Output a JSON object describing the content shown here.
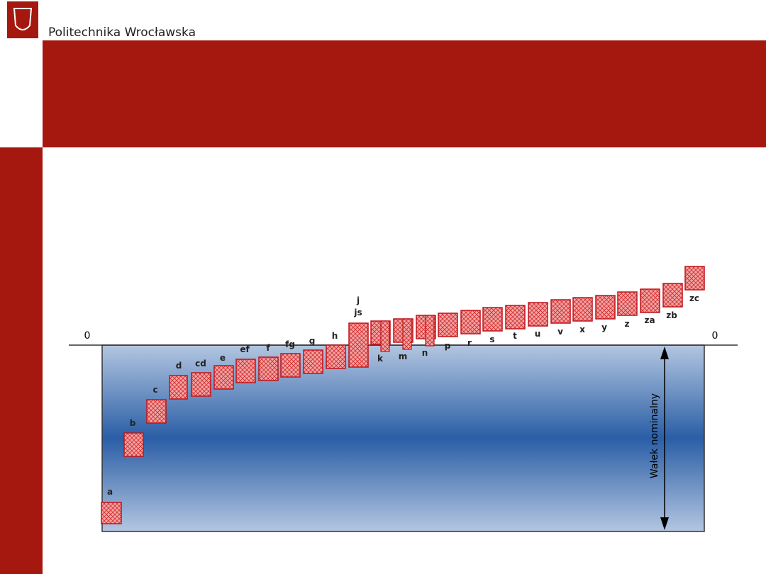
{
  "header": {
    "title": "Politechnika Wrocławska"
  },
  "diagram": {
    "zero_left": "0",
    "zero_right": "0",
    "shaft_label": "Wałek nominalny",
    "zone_labels": [
      "a",
      "b",
      "c",
      "d",
      "cd",
      "e",
      "ef",
      "f",
      "fg",
      "g",
      "h",
      "j",
      "js",
      "k",
      "m",
      "n",
      "p",
      "r",
      "s",
      "t",
      "u",
      "v",
      "x",
      "y",
      "z",
      "za",
      "zb",
      "zc"
    ]
  }
}
